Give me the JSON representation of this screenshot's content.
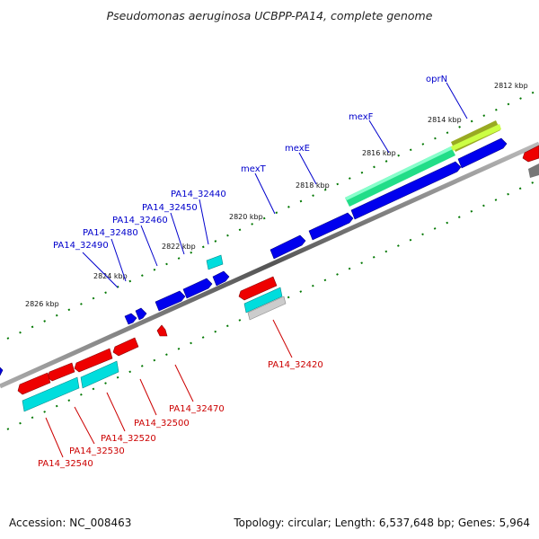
{
  "title": "Pseudomonas aeruginosa UCBPP-PA14, complete genome",
  "footer": {
    "accession": "Accession: NC_008463",
    "summary": "Topology: circular; Length: 6,537,648 bp; Genes: 5,964"
  },
  "kbp_labels": [
    "2812 kbp",
    "2814 kbp",
    "2816 kbp",
    "2818 kbp",
    "2820 kbp",
    "2822 kbp",
    "2824 kbp",
    "2826 kbp"
  ],
  "labels_forward": [
    "oprN",
    "mexF",
    "mexE",
    "mexT",
    "PA14_32440",
    "PA14_32450",
    "PA14_32460",
    "PA14_32480",
    "PA14_32490"
  ],
  "labels_reverse": [
    "PA14_32420",
    "PA14_32470",
    "PA14_32500",
    "PA14_32520",
    "PA14_32530",
    "PA14_32540"
  ],
  "colors": {
    "forward_label": "#0000cc",
    "reverse_label": "#cc0000",
    "forward_gene": "#0000ee",
    "reverse_gene": "#ee0000",
    "cyan_gene": "#00dddd",
    "green_region": "#22dd88",
    "olive_region": "#99aa22",
    "tick": "#007700",
    "backbone": "#777777"
  }
}
